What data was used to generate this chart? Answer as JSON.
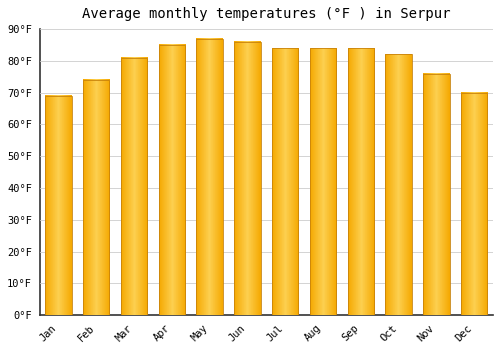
{
  "title": "Average monthly temperatures (°F ) in Serpur",
  "months": [
    "Jan",
    "Feb",
    "Mar",
    "Apr",
    "May",
    "Jun",
    "Jul",
    "Aug",
    "Sep",
    "Oct",
    "Nov",
    "Dec"
  ],
  "values": [
    69,
    74,
    81,
    85,
    87,
    86,
    84,
    84,
    84,
    82,
    76,
    70
  ],
  "bar_color_left": "#F5A800",
  "bar_color_center": "#FDD050",
  "bar_color_right": "#F5A800",
  "bar_edge_color": "#C8820A",
  "ylim": [
    0,
    90
  ],
  "yticks": [
    0,
    10,
    20,
    30,
    40,
    50,
    60,
    70,
    80,
    90
  ],
  "ytick_labels": [
    "0°F",
    "10°F",
    "20°F",
    "30°F",
    "40°F",
    "50°F",
    "60°F",
    "70°F",
    "80°F",
    "90°F"
  ],
  "background_color": "#FFFFFF",
  "plot_bg_color": "#FFFFFF",
  "grid_color": "#CCCCCC",
  "title_fontsize": 10,
  "tick_fontsize": 7.5,
  "bar_width": 0.7,
  "font_family": "monospace"
}
